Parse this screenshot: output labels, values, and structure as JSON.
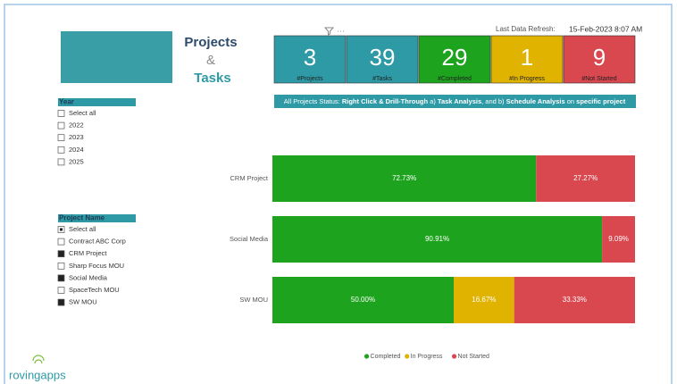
{
  "header": {
    "title_line1": "Projects",
    "title_line2": "&",
    "title_line3": "Tasks",
    "refresh_label": "Last Data Refresh:",
    "refresh_value": "15-Feb-2023 8:07 AM"
  },
  "kpis": [
    {
      "value": 3,
      "label": "#Projects",
      "color": "#2e9aa6"
    },
    {
      "value": 39,
      "label": "#Tasks",
      "color": "#2e9aa6"
    },
    {
      "value": 29,
      "label": "#Completed",
      "color": "#1ea31e"
    },
    {
      "value": 1,
      "label": "#In Progress",
      "color": "#dfb300"
    },
    {
      "value": 9,
      "label": "#Not Started",
      "color": "#d9474f"
    }
  ],
  "banner": {
    "segments": [
      {
        "text": "All Projects Status: ",
        "bold": false
      },
      {
        "text": "Right Click & Drill-Through",
        "bold": true
      },
      {
        "text": " a) ",
        "bold": false
      },
      {
        "text": "Task Analysis",
        "bold": true
      },
      {
        "text": ", and b) ",
        "bold": false
      },
      {
        "text": "Schedule Analysis",
        "bold": true
      },
      {
        "text": " on ",
        "bold": false
      },
      {
        "text": "specific project",
        "bold": true
      }
    ]
  },
  "slicers": [
    {
      "title": "Year",
      "items": [
        {
          "label": "Select all",
          "state": "unchecked"
        },
        {
          "label": "2022",
          "state": "unchecked"
        },
        {
          "label": "2023",
          "state": "unchecked"
        },
        {
          "label": "2024",
          "state": "unchecked"
        },
        {
          "label": "2025",
          "state": "unchecked"
        }
      ]
    },
    {
      "title": "Project Name",
      "items": [
        {
          "label": "Select all",
          "state": "partial"
        },
        {
          "label": "Contract ABC Corp",
          "state": "unchecked"
        },
        {
          "label": "CRM Project",
          "state": "checked"
        },
        {
          "label": "Sharp Focus MOU",
          "state": "unchecked"
        },
        {
          "label": "Social Media",
          "state": "checked"
        },
        {
          "label": "SpaceTech MOU",
          "state": "unchecked"
        },
        {
          "label": "SW MOU",
          "state": "checked"
        }
      ]
    }
  ],
  "chart_data": {
    "type": "stacked_bar_100",
    "categories": [
      "CRM Project",
      "Social Media",
      "SW MOU"
    ],
    "xlim": [
      0,
      100
    ],
    "series": [
      {
        "name": "Completed",
        "color": "#1ea31e",
        "values": [
          72.73,
          90.91,
          50.0
        ],
        "value_labels": [
          "72.73%",
          "90.91%",
          "50.00%"
        ]
      },
      {
        "name": "In Progress",
        "color": "#dfb300",
        "values": [
          0,
          0,
          16.67
        ],
        "value_labels": [
          null,
          null,
          "16.67%"
        ]
      },
      {
        "name": "Not Started",
        "color": "#d9474f",
        "values": [
          27.27,
          9.09,
          33.33
        ],
        "value_labels": [
          "27.27%",
          "9.09%",
          "33.33%"
        ]
      }
    ],
    "legend": "bottom"
  },
  "logo": {
    "text": "rovingapps"
  }
}
